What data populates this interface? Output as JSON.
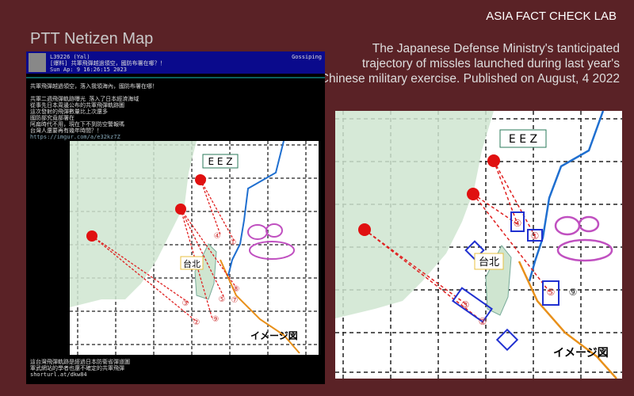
{
  "brand": "ASIA FACT CHECK LAB",
  "left_title": "PTT Netizen Map",
  "description": "The Japanese Defense Ministry's tanticipated trajectory of missles launched during last year's Chinese military exercise. Published on August, 4 2022",
  "ptt": {
    "header_meta": [
      "L39226 (Yal)",
      "[爆料] 共軍飛彈越過領空，國防布署在哪？！",
      "Sun Ap:  9 16:26:15 2023"
    ],
    "header_right": "Gossiping",
    "body_lines": [
      "共軍飛彈越過領空，落入我領海內，國防布署在哪！",
      "",
      "共軍二週飛彈軌跡曝光 落入了日本經濟海域",
      "從事先日本周邊公布的共軍飛彈軌跡圖",
      "這次發射的飛彈數量比上次還多",
      "國防部究竟部署在",
      "阿扁時代不用，現在下不到防空警報嗎",
      "台灣人還要再有幾年時間？！"
    ],
    "link": "https://imgur.com/a/e32kz7Z",
    "footer_lines": [
      "這台灣飛彈軌跡是經過日本防衛省彈道圖",
      "軍武網站的學者也還不確定的共軍飛彈",
      "shorturl.at/dkw84"
    ]
  },
  "map": {
    "eez_label": "E E Z",
    "taipei_label": "台北",
    "image_label": "イメージ図",
    "left_markers": [
      "④",
      "①",
      "⑧",
      "③",
      "⑤",
      "⑦",
      "②",
      "⑨"
    ],
    "right_markers": [
      "④",
      "①",
      "③",
      "②",
      "⑤",
      "⑨"
    ],
    "colors": {
      "land": "#cfe5d0",
      "eez": "#1f6fd0",
      "trajectory": "#e02020",
      "launch": "#e01010",
      "zone": "#2030d0",
      "orange": "#e8901a",
      "island": "#c050c0"
    }
  }
}
